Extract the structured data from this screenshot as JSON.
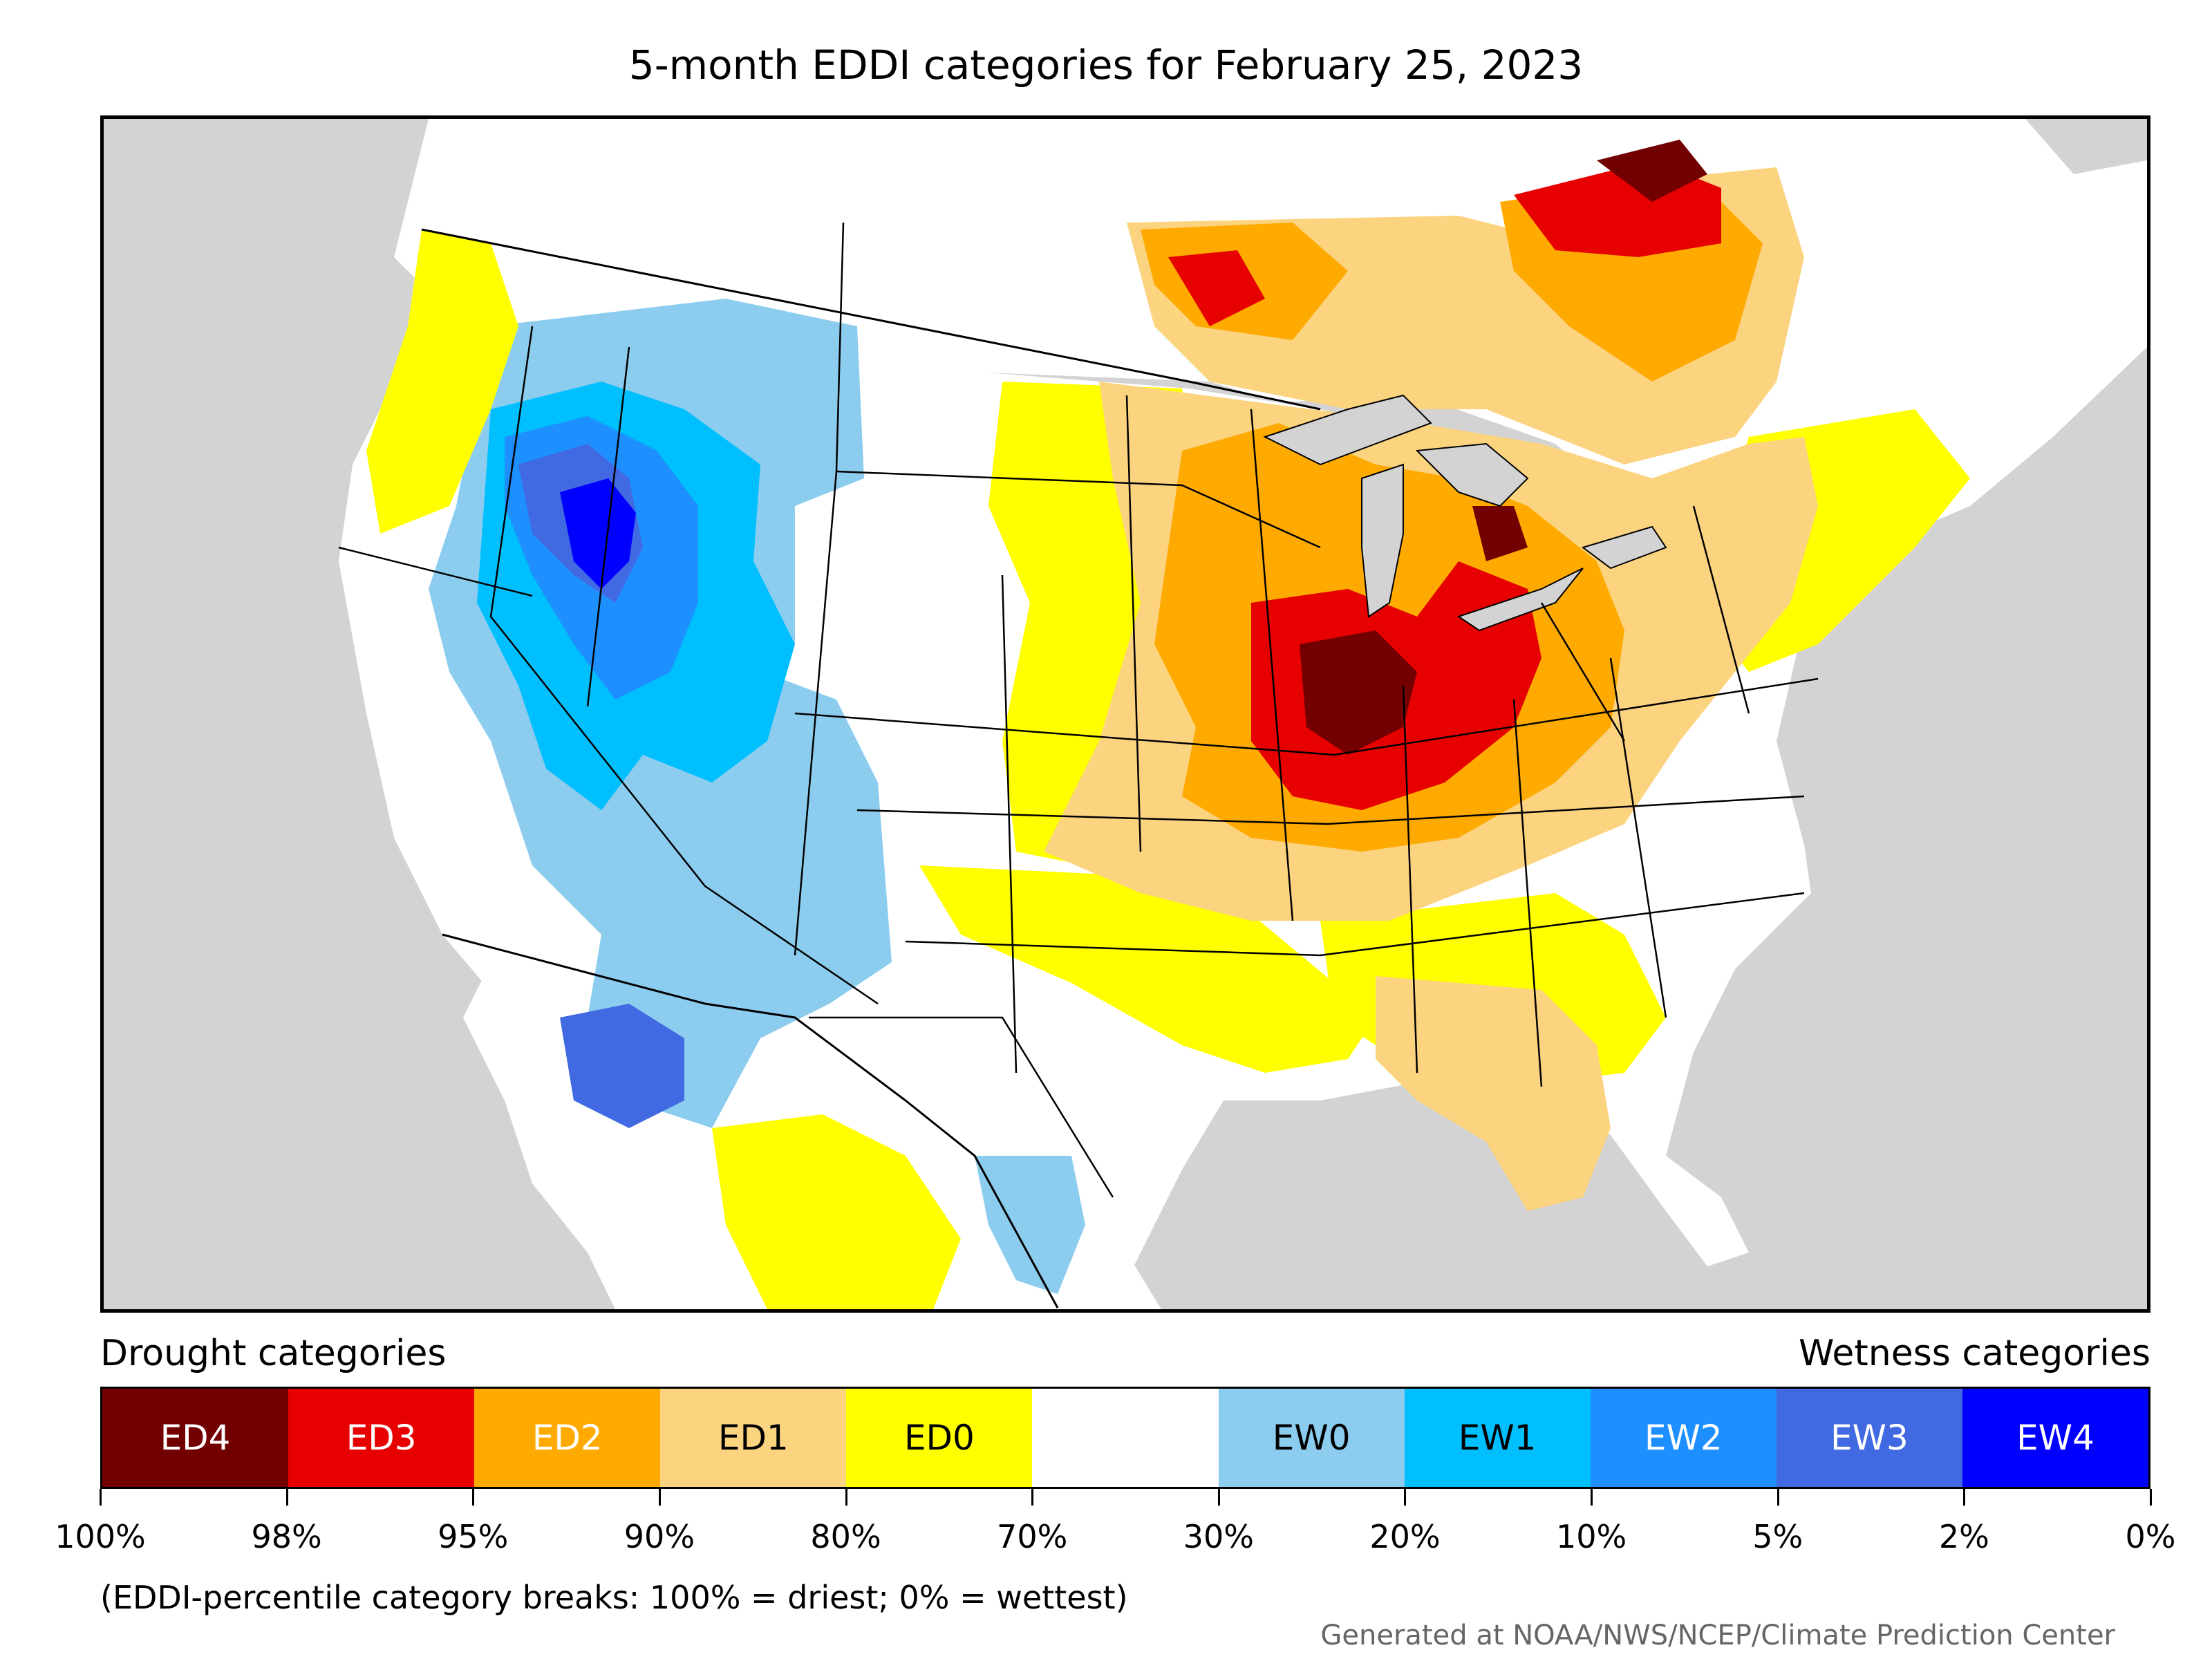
{
  "title": "5-month EDDI categories for February 25, 2023",
  "map": {
    "subject": "EDDI categories map of the contiguous United States",
    "colors": {
      "background": "#d3d3d3",
      "land_neutral": "#ffffff",
      "border_line": "#000000",
      "lakes": "#d3d3d3"
    }
  },
  "legend": {
    "drought_heading": "Drought categories",
    "wetness_heading": "Wetness categories",
    "categories": [
      {
        "label": "ED4",
        "color": "#730000",
        "text_color": "#ffffff"
      },
      {
        "label": "ED3",
        "color": "#e60000",
        "text_color": "#ffffff"
      },
      {
        "label": "ED2",
        "color": "#ffaa00",
        "text_color": "#ffffff"
      },
      {
        "label": "ED1",
        "color": "#fcd37f",
        "text_color": "#000000"
      },
      {
        "label": "ED0",
        "color": "#ffff00",
        "text_color": "#000000"
      },
      {
        "label": "",
        "color": "#ffffff",
        "text_color": "#000000"
      },
      {
        "label": "EW0",
        "color": "#8ccdef",
        "text_color": "#000000"
      },
      {
        "label": "EW1",
        "color": "#00bfff",
        "text_color": "#000000"
      },
      {
        "label": "EW2",
        "color": "#1d8fff",
        "text_color": "#ffffff"
      },
      {
        "label": "EW3",
        "color": "#4169e1",
        "text_color": "#ffffff"
      },
      {
        "label": "EW4",
        "color": "#0000ff",
        "text_color": "#ffffff"
      }
    ],
    "tick_labels": [
      "100%",
      "98%",
      "95%",
      "90%",
      "80%",
      "70%",
      "30%",
      "20%",
      "10%",
      "5%",
      "2%",
      "0%"
    ]
  },
  "note": "(EDDI-percentile category breaks: 100% = driest; 0% = wettest)",
  "credit": "Generated at NOAA/NWS/NCEP/Climate Prediction Center"
}
